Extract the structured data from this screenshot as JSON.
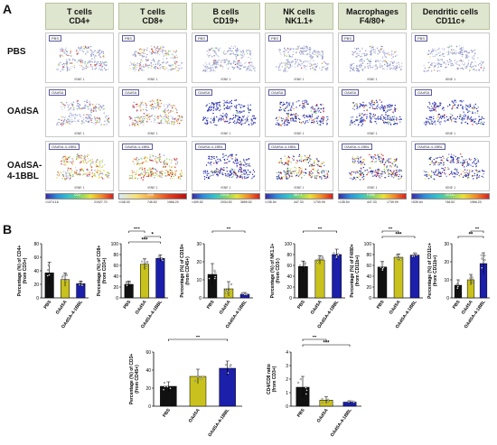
{
  "panels": {
    "a": "A",
    "b": "B"
  },
  "columns": [
    {
      "label": "T cells\nCD4+"
    },
    {
      "label": "T cells\nCD8+"
    },
    {
      "label": "B cells\nCD19+"
    },
    {
      "label": "NK cells\nNK1.1+"
    },
    {
      "label": "Macrophages\nF4/80+"
    },
    {
      "label": "Dendritic cells\nCD11c+"
    }
  ],
  "rows": [
    {
      "label": "PBS",
      "tag": "PBS"
    },
    {
      "label": "OAdSA",
      "tag": "OAdSA"
    },
    {
      "label": "OAdSA-\n4-1BBL",
      "tag": "OAdSA-4-1BBL"
    }
  ],
  "tsne_axis_label": "tSNE 1",
  "colorbars": [
    {
      "marker": "CD4",
      "min": "<1074.16",
      "mid": "",
      "max": "21927.70",
      "style": "default"
    },
    {
      "marker": "CD8",
      "min": "<108.00",
      "mid": "746.52",
      "max": "1966.20",
      "style": "cd8"
    },
    {
      "marker": "CD19",
      "min": "<409.52",
      "mid": "2034.52",
      "max": "3659.52",
      "style": "default"
    },
    {
      "marker": "NK1.1",
      "min": "<135.54",
      "mid": "447.33",
      "max": "1739.99",
      "style": "default"
    },
    {
      "marker": "F4/80",
      "min": "<135.54",
      "mid": "447.33",
      "max": "1739.99",
      "style": "default"
    },
    {
      "marker": "CD11c",
      "min": "<539.64",
      "mid": "746.52",
      "max": "1966.20",
      "style": "default"
    }
  ],
  "colors": {
    "pbs": "#111111",
    "oadsa": "#c9c21e",
    "oadsa_41bbl": "#1b1faa",
    "header_bg": "#dfe6cf"
  },
  "chart_data": [
    {
      "type": "bar",
      "ylabel": "Percentage (%) of CD4+\n(from CD3+)",
      "categories": [
        "PBS",
        "OAdSA",
        "OAdSA-4-1BBL"
      ],
      "values": [
        37,
        27,
        21
      ],
      "errors": [
        16,
        10,
        4
      ],
      "ylim": [
        0,
        80
      ],
      "yticks": [
        0,
        20,
        40,
        60,
        80
      ],
      "significance": []
    },
    {
      "type": "bar",
      "ylabel": "Percentage (%) of CD8+\n(from CD3+)",
      "categories": [
        "PBS",
        "OAdSA",
        "OAdSA-4-1BBL"
      ],
      "values": [
        25,
        62,
        73
      ],
      "errors": [
        6,
        10,
        6
      ],
      "ylim": [
        0,
        100
      ],
      "yticks": [
        0,
        20,
        40,
        60,
        80,
        100
      ],
      "significance": [
        {
          "from": 0,
          "to": 1,
          "label": "***"
        },
        {
          "from": 1,
          "to": 2,
          "label": "*"
        },
        {
          "from": 0,
          "to": 2,
          "label": "***"
        }
      ]
    },
    {
      "type": "bar",
      "ylabel": "Percentage (%) of CD19+\n(from CD45+)",
      "categories": [
        "PBS",
        "OAdSA",
        "OAdSA-4-1BBL"
      ],
      "values": [
        13,
        5,
        2
      ],
      "errors": [
        6,
        4,
        1
      ],
      "ylim": [
        0,
        30
      ],
      "yticks": [
        0,
        10,
        20,
        30
      ],
      "significance": [
        {
          "from": 0,
          "to": 2,
          "label": "**"
        }
      ]
    },
    {
      "type": "bar",
      "ylabel": "Percentage (%) of NK1.1+\n(from CD3-)",
      "categories": [
        "PBS",
        "OAdSA",
        "OAdSA-4-1BBL"
      ],
      "values": [
        58,
        70,
        80
      ],
      "errors": [
        10,
        8,
        10
      ],
      "ylim": [
        0,
        100
      ],
      "yticks": [
        0,
        20,
        40,
        60,
        80,
        100
      ],
      "significance": [
        {
          "from": 0,
          "to": 2,
          "label": "**"
        }
      ]
    },
    {
      "type": "bar",
      "ylabel": "Percentage (%) of F4/80+\n(from CD11b+)",
      "categories": [
        "PBS",
        "OAdSA",
        "OAdSA-4-1BBL"
      ],
      "values": [
        57,
        75,
        79
      ],
      "errors": [
        10,
        6,
        4
      ],
      "ylim": [
        0,
        100
      ],
      "yticks": [
        0,
        20,
        40,
        60,
        80,
        100
      ],
      "significance": [
        {
          "from": 0,
          "to": 1,
          "label": "**"
        },
        {
          "from": 0,
          "to": 2,
          "label": "***"
        }
      ]
    },
    {
      "type": "bar",
      "ylabel": "Percentage (%) of CD11c+\n(from CD11b+)",
      "categories": [
        "PBS",
        "OAdSA",
        "OAdSA-4-1BBL"
      ],
      "values": [
        7,
        10,
        19
      ],
      "errors": [
        3,
        3,
        6
      ],
      "ylim": [
        0,
        30
      ],
      "yticks": [
        0,
        10,
        20,
        30
      ],
      "significance": [
        {
          "from": 1,
          "to": 2,
          "label": "**"
        },
        {
          "from": 0,
          "to": 2,
          "label": "**"
        }
      ]
    },
    {
      "type": "bar",
      "ylabel": "Percentage (%) of CD3+\n(from CD45+)",
      "categories": [
        "PBS",
        "OAdSA",
        "OAdSA-4-1BBL"
      ],
      "values": [
        22,
        33,
        42
      ],
      "errors": [
        5,
        8,
        8
      ],
      "ylim": [
        0,
        60
      ],
      "yticks": [
        0,
        20,
        40,
        60
      ],
      "significance": [
        {
          "from": 0,
          "to": 2,
          "label": "**"
        }
      ]
    },
    {
      "type": "bar",
      "ylabel": "CD4/CD8 ratio\n(from CD3+)",
      "categories": [
        "PBS",
        "OAdSA",
        "OAdSA-4-1BBL"
      ],
      "values": [
        1.4,
        0.45,
        0.3
      ],
      "errors": [
        0.8,
        0.25,
        0.1
      ],
      "ylim": [
        0,
        4
      ],
      "yticks": [
        0,
        1,
        2,
        3,
        4
      ],
      "significance": [
        {
          "from": 0,
          "to": 1,
          "label": "**"
        },
        {
          "from": 0,
          "to": 2,
          "label": "***"
        }
      ]
    }
  ]
}
